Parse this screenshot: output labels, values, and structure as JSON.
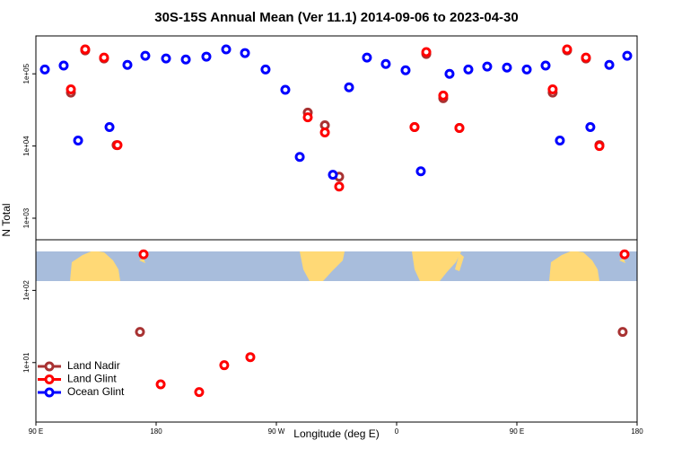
{
  "chart_data": {
    "type": "scatter",
    "title": "30S-15S Annual Mean (Ver 11.1)   2014-09-06 to 2023-04-30",
    "xlabel": "Longitude (deg E)",
    "ylabel": "N Total",
    "log_y": true,
    "legend": "bottom-left",
    "xlim": [
      90,
      540
    ],
    "xticks": [
      {
        "value": 90,
        "label": "90 E"
      },
      180,
      {
        "value": 270,
        "label": "90 W"
      },
      {
        "value": 360,
        "label": "0"
      },
      {
        "value": 450,
        "label": "90 E"
      },
      {
        "value": 540,
        "label": "180"
      }
    ],
    "ylim": [
      1.5,
      335000
    ],
    "yticks": [
      {
        "value": 10,
        "label": "1e+01"
      },
      {
        "value": 100,
        "label": "1e+02"
      },
      {
        "value": 1000,
        "label": "1e+03"
      },
      {
        "value": 10000,
        "label": "1e+04"
      },
      {
        "value": 100000,
        "label": "1e+05"
      }
    ],
    "series": [
      {
        "name": "Land Nadir",
        "color": "#a83232",
        "x": [
          116.2,
          126.9,
          141,
          150.4,
          167.9,
          293.5,
          306.3,
          317,
          373.4,
          382.2,
          394.9,
          407,
          476.8,
          487.6,
          501.7,
          511.8,
          529.2
        ],
        "values": [
          55000,
          211000,
          163000,
          10300,
          26.6,
          29000,
          19400,
          3760,
          18300,
          188000,
          46000,
          17800,
          55000,
          211000,
          163000,
          10300,
          26.6
        ]
      },
      {
        "name": "Land Glint",
        "color": "#ff0000",
        "x": [
          116.2,
          126.9,
          141,
          151.1,
          170.6,
          183.4,
          212.2,
          231,
          250.5,
          293.5,
          306.3,
          317,
          373.4,
          382.2,
          394.9,
          407,
          476.8,
          487.6,
          501.7,
          511.8,
          530.6
        ],
        "values": [
          61000,
          218000,
          168000,
          10300,
          316,
          5.0,
          3.9,
          9.2,
          11.9,
          25000,
          15400,
          2740,
          18300,
          200000,
          50000,
          17800,
          61000,
          218000,
          168000,
          10000,
          316
        ]
      },
      {
        "name": "Ocean Glint",
        "color": "#0000ff",
        "x": [
          96.7,
          110.8,
          121.6,
          145.1,
          158.5,
          171.9,
          187.4,
          202.2,
          217.6,
          232.4,
          246.5,
          261.9,
          276.7,
          287.5,
          312.3,
          324.4,
          337.8,
          351.9,
          366.7,
          378.1,
          399.6,
          413.7,
          427.8,
          442.6,
          457.4,
          471.5,
          482.2,
          505,
          519.2,
          532.6
        ],
        "values": [
          115000,
          130000,
          11900,
          18300,
          133000,
          178000,
          163000,
          158000,
          173000,
          218000,
          194000,
          115000,
          60000,
          7070,
          4000,
          65000,
          168000,
          137000,
          112000,
          4470,
          100000,
          115000,
          126000,
          122000,
          115000,
          130000,
          11900,
          18300,
          133000,
          178000
        ]
      }
    ]
  }
}
